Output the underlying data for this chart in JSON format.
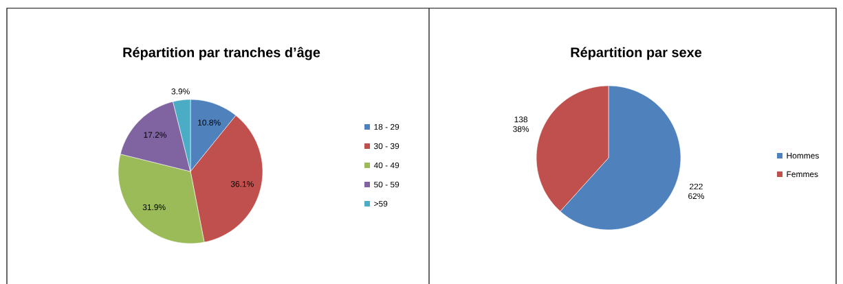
{
  "chart_data": [
    {
      "type": "pie",
      "title": "Répartition par tranches d’âge",
      "categories": [
        "18 - 29",
        "30 - 39",
        "40 - 49",
        "50 - 59",
        ">59"
      ],
      "values": [
        10.8,
        36.1,
        31.9,
        17.2,
        3.9
      ],
      "colors": [
        "#4f81bd",
        "#c0504d",
        "#9bbb59",
        "#8064a2",
        "#4bacc6"
      ],
      "value_labels": [
        "10.8%",
        "36.1%",
        "31.9%",
        "17.2%",
        "3.9%"
      ],
      "legend": "right"
    },
    {
      "type": "pie",
      "title": "Répartition par sexe",
      "categories": [
        "Hommes",
        "Femmes"
      ],
      "values": [
        222,
        138
      ],
      "colors": [
        "#4f81bd",
        "#c0504d"
      ],
      "value_labels": [
        "222 62%",
        "138 38%"
      ],
      "legend": "right"
    }
  ]
}
